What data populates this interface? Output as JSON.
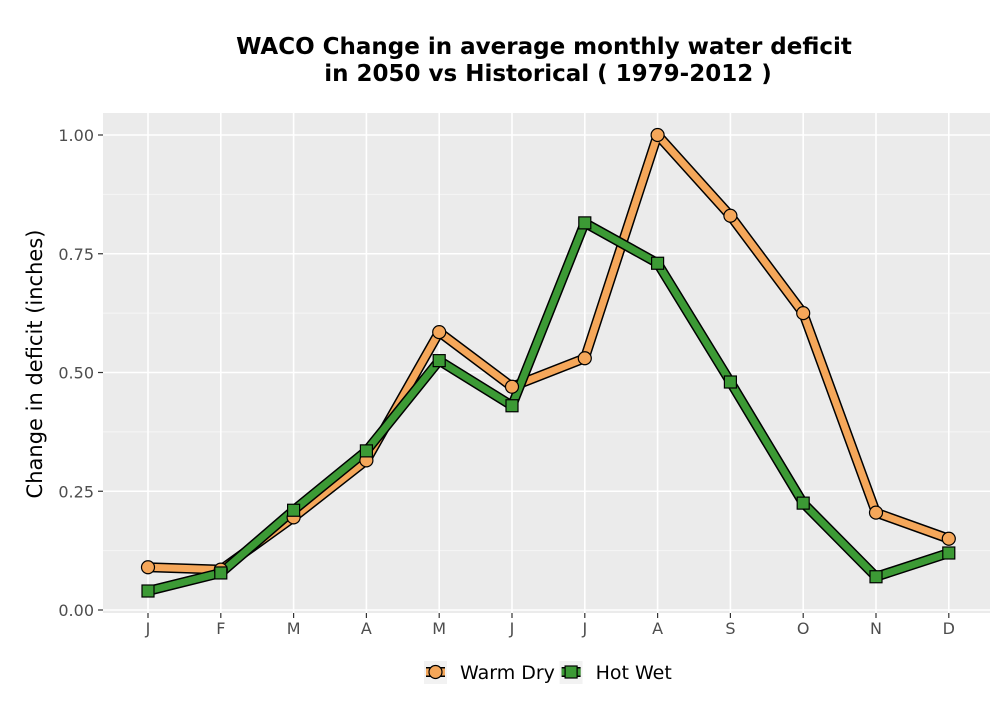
{
  "chart_data": {
    "type": "line",
    "title_line1": "WACO  Change in average monthly water deficit",
    "title_line2": "in 2050 vs Historical ( 1979-2012 )",
    "xlabel": "",
    "ylabel": "Change in deficit (inches)",
    "categories": [
      "J",
      "F",
      "M",
      "A",
      "M",
      "J",
      "J",
      "A",
      "S",
      "O",
      "N",
      "D"
    ],
    "ylim": [
      0,
      1.05
    ],
    "yticks": [
      0.0,
      0.25,
      0.5,
      0.75,
      1.0
    ],
    "ytick_labels": [
      "0.00",
      "0.25",
      "0.50",
      "0.75",
      "1.00"
    ],
    "grid": true,
    "legend_position": "bottom",
    "series": [
      {
        "name": "Warm Dry",
        "marker": "circle",
        "color": "#F5A75A",
        "values": [
          0.09,
          0.085,
          0.195,
          0.315,
          0.585,
          0.47,
          0.53,
          1.0,
          0.83,
          0.625,
          0.205,
          0.15
        ]
      },
      {
        "name": "Hot Wet",
        "marker": "square",
        "color": "#3C9A35",
        "values": [
          0.04,
          0.078,
          0.21,
          0.335,
          0.525,
          0.43,
          0.815,
          0.73,
          0.48,
          0.225,
          0.07,
          0.12
        ]
      }
    ]
  }
}
